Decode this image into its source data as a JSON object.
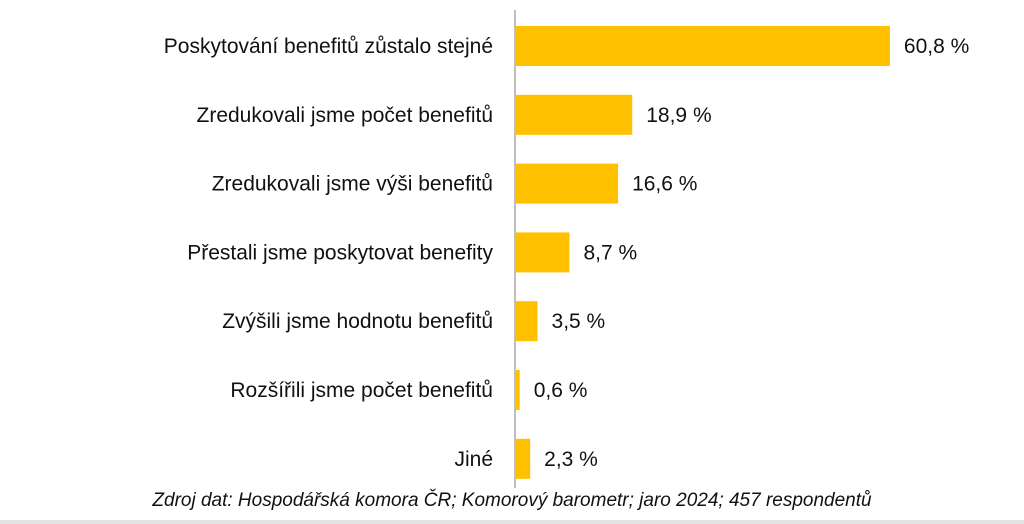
{
  "chart_data": {
    "type": "bar",
    "orientation": "horizontal",
    "categories": [
      "Poskytování benefitů zůstalo stejné",
      "Zredukovali jsme počet benefitů",
      "Zredukovali jsme výši benefitů",
      "Přestali jsme poskytovat benefity",
      "Zvýšili jsme hodnotu benefitů",
      "Rozšířili jsme počet benefitů",
      "Jiné"
    ],
    "values": [
      60.8,
      18.9,
      16.6,
      8.7,
      3.5,
      0.6,
      2.3
    ],
    "value_labels": [
      "60,8 %",
      "18,9 %",
      "16,6 %",
      "8,7 %",
      "3,5 %",
      "0,6 %",
      "2,3 %"
    ],
    "xlim": [
      0,
      100
    ],
    "grid": false,
    "bar_color": "#FFC000",
    "axis_color": "#BFBFBF"
  },
  "source": "Zdroj dat: Hospodářská komora ČR; Komorový barometr; jaro 2024; 457 respondentů"
}
